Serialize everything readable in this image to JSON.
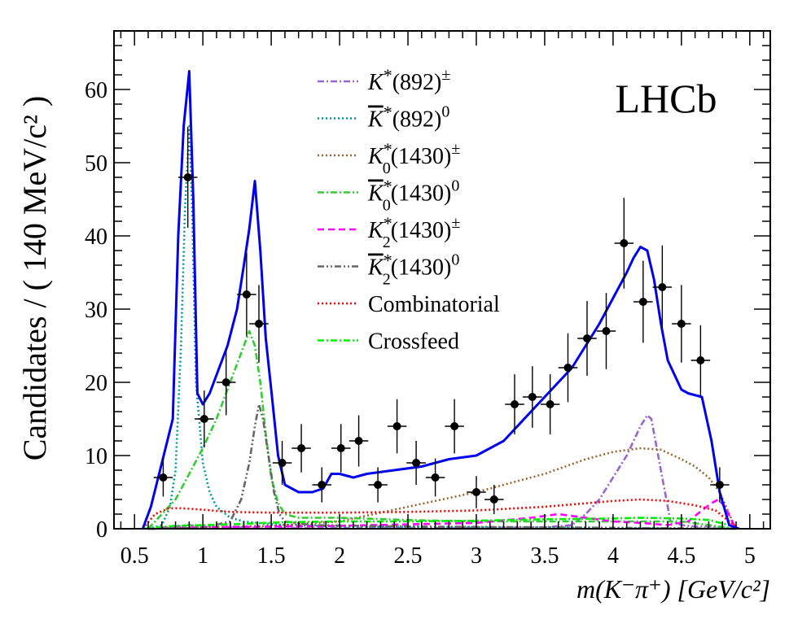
{
  "chart_data": {
    "type": "line",
    "experiment_label": "LHCb",
    "ylabel": "Candidates / ( 140 MeV/c² )",
    "xlabel": "m(K⁻π⁺) [GeV/c²]",
    "xlim": [
      0.35,
      5.15
    ],
    "ylim": [
      0,
      68
    ],
    "x_ticks": [
      0.5,
      1,
      1.5,
      2,
      2.5,
      3,
      3.5,
      4,
      4.5,
      5
    ],
    "x_tick_labels": [
      "0.5",
      "1",
      "1.5",
      "2",
      "2.5",
      "3",
      "3.5",
      "4",
      "4.5",
      "5"
    ],
    "y_ticks": [
      0,
      10,
      20,
      30,
      40,
      50,
      60
    ],
    "y_tick_labels": [
      "0",
      "10",
      "20",
      "30",
      "40",
      "50",
      "60"
    ],
    "data_points": {
      "name": "Data",
      "x": [
        0.71,
        0.89,
        1.01,
        1.17,
        1.32,
        1.41,
        1.58,
        1.72,
        1.87,
        2.01,
        2.14,
        2.28,
        2.42,
        2.56,
        2.7,
        2.84,
        3.0,
        3.13,
        3.28,
        3.41,
        3.54,
        3.67,
        3.81,
        3.95,
        4.08,
        4.22,
        4.36,
        4.5,
        4.64,
        4.78
      ],
      "y": [
        7,
        48,
        15,
        20,
        32,
        28,
        9,
        11,
        6,
        11,
        12,
        6,
        14,
        9,
        7,
        14,
        5,
        4,
        17,
        18,
        17,
        22,
        26,
        27,
        39,
        31,
        33,
        28,
        23,
        6
      ],
      "yerr": [
        2.6,
        6.9,
        3.9,
        4.5,
        5.7,
        5.3,
        3.0,
        3.3,
        2.4,
        3.3,
        3.5,
        2.4,
        3.7,
        3.0,
        2.6,
        3.7,
        2.2,
        2.0,
        4.1,
        4.2,
        4.1,
        4.7,
        5.1,
        5.2,
        6.2,
        5.6,
        5.7,
        5.3,
        4.8,
        2.4
      ]
    },
    "series": [
      {
        "name": "Total fit",
        "legend": false,
        "color": "#0000ee",
        "style": "solid",
        "x": [
          0.56,
          0.62,
          0.7,
          0.78,
          0.82,
          0.86,
          0.9,
          0.93,
          0.96,
          1.0,
          1.05,
          1.1,
          1.18,
          1.25,
          1.3,
          1.34,
          1.38,
          1.42,
          1.46,
          1.5,
          1.55,
          1.6,
          1.7,
          1.8,
          1.88,
          1.94,
          2.0,
          2.1,
          2.2,
          2.4,
          2.6,
          2.8,
          3.0,
          3.2,
          3.4,
          3.6,
          3.7,
          3.8,
          3.9,
          4.0,
          4.1,
          4.15,
          4.2,
          4.25,
          4.3,
          4.35,
          4.4,
          4.5,
          4.55,
          4.65,
          4.72,
          4.78,
          4.85,
          4.92
        ],
        "y": [
          0,
          3,
          9,
          15,
          40,
          55,
          62.5,
          45,
          18.5,
          17,
          18.5,
          21,
          25,
          30,
          36,
          41,
          47.5,
          38,
          26,
          19,
          10,
          6,
          5,
          5,
          5.5,
          7.5,
          7.5,
          7,
          7.5,
          8,
          8.5,
          9.5,
          10,
          12,
          16,
          20,
          22,
          25,
          28,
          31.5,
          35,
          37,
          38.5,
          38,
          34,
          28,
          23,
          19,
          18.5,
          18,
          12,
          5,
          0.5,
          0
        ]
      },
      {
        "name": "K*(892)±",
        "color": "#9966cc",
        "style": "dashdot",
        "x": [
          0.6,
          0.8,
          0.9,
          1.0,
          1.2,
          1.5,
          1.8,
          2.0,
          2.5,
          3.0,
          3.5,
          3.7,
          3.8,
          3.9,
          4.0,
          4.1,
          4.2,
          4.25,
          4.28,
          4.3,
          4.33,
          4.38,
          4.42,
          4.5,
          4.6,
          4.7,
          4.8,
          4.9
        ],
        "y": [
          0,
          0.3,
          0.5,
          0.3,
          0.2,
          0.1,
          0.1,
          0.1,
          0.1,
          0.1,
          0.2,
          0.5,
          2,
          4,
          7,
          10,
          14,
          15.5,
          15,
          13,
          10,
          5,
          1,
          0.5,
          0.3,
          0.3,
          0.2,
          0
        ]
      },
      {
        "name": "K*(892)0",
        "color": "#009999",
        "style": "dotted",
        "x": [
          0.6,
          0.7,
          0.76,
          0.8,
          0.84,
          0.87,
          0.9,
          0.92,
          0.95,
          1.0,
          1.05,
          1.1,
          1.2,
          1.3,
          1.5,
          2.0,
          3.0,
          4.0,
          4.9
        ],
        "y": [
          0,
          0.5,
          3,
          8,
          25,
          44,
          55,
          45,
          20,
          9,
          5,
          3,
          1.5,
          1,
          0.6,
          0.3,
          0.2,
          0.1,
          0
        ]
      },
      {
        "name": "K0*(1430)±",
        "color": "#996633",
        "style": "dotted",
        "x": [
          0.6,
          1.0,
          1.5,
          2.0,
          2.5,
          3.0,
          3.5,
          3.8,
          4.0,
          4.2,
          4.35,
          4.5,
          4.6,
          4.7,
          4.78,
          4.85,
          4.9
        ],
        "y": [
          0,
          0.2,
          0.4,
          1,
          3,
          5,
          7.5,
          9.5,
          10.5,
          11,
          10.8,
          9.5,
          8.5,
          7,
          5,
          2,
          0
        ]
      },
      {
        "name": "K0*(1430)0",
        "color": "#33cc33",
        "style": "dashdot",
        "x": [
          0.6,
          0.8,
          1.0,
          1.1,
          1.2,
          1.28,
          1.34,
          1.38,
          1.42,
          1.46,
          1.5,
          1.55,
          1.6,
          1.7,
          2.0,
          2.5,
          3.0,
          3.5,
          4.0,
          4.5,
          4.9
        ],
        "y": [
          0,
          4,
          11,
          15,
          20,
          24,
          27,
          25,
          20,
          13,
          7,
          3.5,
          2,
          1.5,
          1.5,
          1.2,
          1,
          1,
          1,
          1,
          0
        ]
      },
      {
        "name": "K2*(1430)±",
        "color": "#ff00ff",
        "style": "dashed",
        "x": [
          0.6,
          1.0,
          2.0,
          3.0,
          3.4,
          3.6,
          3.8,
          4.0,
          4.2,
          4.4,
          4.55,
          4.65,
          4.72,
          4.77,
          4.82,
          4.87,
          4.9
        ],
        "y": [
          0,
          0.2,
          0.4,
          0.8,
          1.5,
          2,
          1.5,
          1,
          0.8,
          0.5,
          1,
          2.5,
          3.5,
          4,
          3,
          1,
          0
        ]
      },
      {
        "name": "K2*(1430)0",
        "color": "#666666",
        "style": "dashdotdot",
        "x": [
          0.6,
          1.0,
          1.2,
          1.28,
          1.34,
          1.38,
          1.41,
          1.44,
          1.48,
          1.52,
          1.56,
          1.6,
          1.8,
          2.5,
          3.5,
          4.9
        ],
        "y": [
          0,
          0.1,
          1,
          4,
          9,
          14,
          17,
          15,
          10,
          5,
          2,
          1,
          0.5,
          0.3,
          0.2,
          0
        ]
      },
      {
        "name": "Combinatorial",
        "color": "#ff0000",
        "style": "dotted",
        "x": [
          0.56,
          0.65,
          0.75,
          0.85,
          1.0,
          1.2,
          1.5,
          2.0,
          2.5,
          3.0,
          3.5,
          4.0,
          4.2,
          4.4,
          4.6,
          4.75,
          4.85,
          4.92
        ],
        "y": [
          0,
          2,
          2.8,
          2.8,
          2.6,
          2.3,
          2.2,
          2.2,
          2.3,
          2.5,
          3,
          3.8,
          4,
          3.8,
          3.2,
          2.5,
          1,
          0
        ]
      },
      {
        "name": "Crossfeed",
        "color": "#00ee00",
        "style": "dashdot",
        "x": [
          0.56,
          0.8,
          1.2,
          1.6,
          2.0,
          2.5,
          3.0,
          3.5,
          4.0,
          4.2,
          4.5,
          4.7,
          4.85,
          4.92
        ],
        "y": [
          0,
          0.4,
          0.6,
          0.9,
          1,
          1,
          1.1,
          1.3,
          1.4,
          1.5,
          1.4,
          1.2,
          0.5,
          0
        ]
      }
    ],
    "legend": {
      "placement": "top-center",
      "entries": [
        {
          "base": "K",
          "bar": false,
          "sub": "",
          "sup": "*",
          "mass": "(892)",
          "charge": "±",
          "color": "#9966cc",
          "style": "dashdot"
        },
        {
          "base": "K",
          "bar": true,
          "sub": "",
          "sup": "*",
          "mass": "(892)",
          "charge": "0",
          "color": "#009999",
          "style": "dotted"
        },
        {
          "base": "K",
          "bar": false,
          "sub": "0",
          "sup": "*",
          "mass": "(1430)",
          "charge": "±",
          "color": "#996633",
          "style": "dotted"
        },
        {
          "base": "K",
          "bar": true,
          "sub": "0",
          "sup": "*",
          "mass": "(1430)",
          "charge": "0",
          "color": "#33cc33",
          "style": "dashdot"
        },
        {
          "base": "K",
          "bar": false,
          "sub": "2",
          "sup": "*",
          "mass": "(1430)",
          "charge": "±",
          "color": "#ff00ff",
          "style": "dashed"
        },
        {
          "base": "K",
          "bar": true,
          "sub": "2",
          "sup": "*",
          "mass": "(1430)",
          "charge": "0",
          "color": "#666666",
          "style": "dashdotdot"
        },
        {
          "text": "Combinatorial",
          "color": "#ff0000",
          "style": "dotted"
        },
        {
          "text": "Crossfeed",
          "color": "#00ee00",
          "style": "dashdot"
        }
      ]
    }
  }
}
